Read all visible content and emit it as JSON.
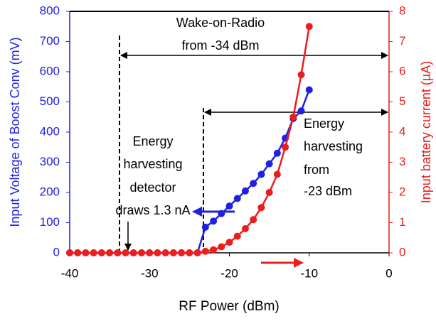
{
  "chart_data": {
    "type": "line",
    "x_label": "RF Power (dBm)",
    "y_label": "Input Voltage of Boost Conv (mV)",
    "y2_label": "Input battery current (µA)",
    "x": [
      -40,
      -39,
      -38,
      -37,
      -36,
      -35,
      -34,
      -33,
      -32,
      -31,
      -30,
      -29,
      -28,
      -27,
      -26,
      -25,
      -24,
      -23,
      -22,
      -21,
      -20,
      -19,
      -18,
      -17,
      -16,
      -15,
      -14,
      -13,
      -12,
      -11,
      -10
    ],
    "series": [
      {
        "name": "Input Voltage of Boost Conv",
        "color": "#1f1fe6",
        "axis": "y",
        "values": [
          0,
          0,
          0,
          0,
          0,
          0,
          0,
          0,
          0,
          0,
          0,
          0,
          0,
          0,
          0,
          0,
          0,
          85,
          105,
          130,
          155,
          180,
          205,
          230,
          260,
          295,
          330,
          380,
          445,
          470,
          540
        ]
      },
      {
        "name": "Input battery current",
        "color": "#ee1c1c",
        "axis": "y2",
        "values": [
          0,
          0,
          0,
          0,
          0,
          0,
          0,
          0,
          0,
          0,
          0,
          0,
          0,
          0,
          0,
          0,
          0,
          0.05,
          0.1,
          0.2,
          0.35,
          0.55,
          0.8,
          1.1,
          1.5,
          2.0,
          2.6,
          3.5,
          4.5,
          5.9,
          7.5
        ]
      }
    ],
    "xlim": [
      -40,
      0
    ],
    "xticks": [
      -40,
      -30,
      -20,
      -10,
      0
    ],
    "ylim": [
      0,
      800
    ],
    "yticks": [
      0,
      100,
      200,
      300,
      400,
      500,
      600,
      700,
      800
    ],
    "y2lim": [
      0,
      8
    ],
    "y2ticks": [
      0,
      1,
      2,
      3,
      4,
      5,
      6,
      7,
      8
    ],
    "annotations": [
      [
        "Wake-on-Radio",
        "from -34 dBm"
      ],
      [
        "Energy",
        "harvesting",
        "from",
        "-23 dBm"
      ],
      [
        "Energy",
        "harvesting",
        "detector",
        "draws 1.3 nA"
      ]
    ]
  }
}
